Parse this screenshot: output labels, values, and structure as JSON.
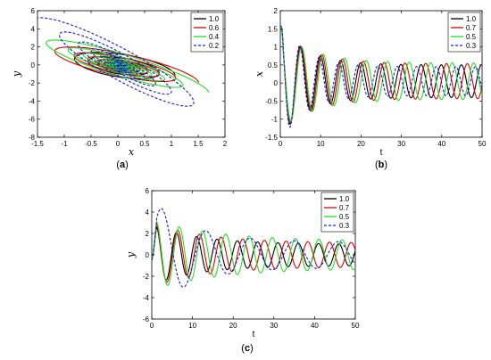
{
  "colors": {
    "black": "#000000",
    "red": "#e00000",
    "green": "#22e022",
    "blue": "#1a1ae6"
  },
  "chart_data": [
    {
      "type": "line",
      "panel": "a",
      "caption_letter": "a",
      "xlabel": "x",
      "ylabel": "y",
      "xlim": [
        -1.5,
        2
      ],
      "ylim": [
        -8,
        6
      ],
      "xticks": [
        -1.5,
        -1,
        -0.5,
        0,
        0.5,
        1,
        1.5,
        2
      ],
      "xtick_labels": [
        "-1.5",
        "-1",
        "-0.5",
        "0",
        "0.5",
        "1",
        "1.5",
        "2"
      ],
      "yticks": [
        -8,
        -6,
        -4,
        -2,
        0,
        2,
        4,
        6
      ],
      "ytick_labels": [
        "-8",
        "-6",
        "-4",
        "-2",
        "0",
        "2",
        "4",
        "6"
      ],
      "legend_position": "top-right",
      "series": [
        {
          "name": "1.0",
          "color": "black",
          "dash": false,
          "x": [
            1.05,
            0.6,
            -1.05,
            0.2,
            0.45,
            -0.35,
            0.05
          ],
          "y": [
            -1.2,
            -2.8,
            1.4,
            2.3,
            -1.1,
            0.6,
            -0.2
          ]
        },
        {
          "name": "0.6",
          "color": "red",
          "dash": false,
          "x": [
            1.3,
            0.9,
            -0.8,
            -0.85,
            0.5,
            0.4,
            -0.3,
            0.05
          ],
          "y": [
            -2.0,
            -2.7,
            3.0,
            2.0,
            -1.6,
            -0.9,
            0.5,
            -0.1
          ]
        },
        {
          "name": "0.4",
          "color": "green",
          "dash": false,
          "x": [
            1.3,
            0.5,
            -0.6,
            -0.25,
            0.4,
            -0.2,
            0.05
          ],
          "y": [
            -3.1,
            -4.4,
            3.5,
            1.6,
            -1.4,
            0.4,
            -0.1
          ]
        },
        {
          "name": "0.2",
          "color": "blue",
          "dash": true,
          "x": [
            -1.1,
            1.9,
            1.6,
            -0.35,
            0.3,
            -0.2,
            0.05
          ],
          "y": [
            4.8,
            -4.4,
            -6.3,
            2.1,
            -0.9,
            0.5,
            -0.1
          ]
        }
      ]
    },
    {
      "type": "line",
      "panel": "b",
      "caption_letter": "b",
      "xlabel": "t",
      "ylabel": "x",
      "xlim": [
        0,
        50
      ],
      "ylim": [
        -1.5,
        2
      ],
      "xticks": [
        0,
        10,
        20,
        30,
        40,
        50
      ],
      "xtick_labels": [
        "0",
        "10",
        "20",
        "30",
        "40",
        "50"
      ],
      "yticks": [
        -1.5,
        -1,
        -0.5,
        0,
        0.5,
        1,
        1.5,
        2
      ],
      "ytick_labels": [
        "-1.5",
        "-1",
        "-0.5",
        "0",
        "0.5",
        "1",
        "1.5",
        "2"
      ],
      "legend_position": "top-right",
      "series": [
        {
          "name": "1.0",
          "color": "black",
          "dash": false,
          "x0": 1.5,
          "amp0": 1.5,
          "tau": 7,
          "amp_inf": 0.45,
          "omega": 1.26,
          "offset": 0.05
        },
        {
          "name": "0.7",
          "color": "red",
          "dash": false,
          "x0": 1.5,
          "amp0": 1.4,
          "tau": 8,
          "amp_inf": 0.48,
          "omega": 1.22,
          "offset": 0.05
        },
        {
          "name": "0.5",
          "color": "green",
          "dash": false,
          "x0": 1.5,
          "amp0": 1.3,
          "tau": 9,
          "amp_inf": 0.5,
          "omega": 1.18,
          "offset": 0.05
        },
        {
          "name": "0.3",
          "color": "blue",
          "dash": true,
          "x0": 1.5,
          "amp0": 1.7,
          "tau": 6,
          "amp_inf": 0.4,
          "omega": 1.3,
          "offset": 0.05
        }
      ]
    },
    {
      "type": "line",
      "panel": "c",
      "caption_letter": "c",
      "xlabel": "t",
      "ylabel": "y",
      "xlim": [
        0,
        50
      ],
      "ylim": [
        -6,
        6
      ],
      "xticks": [
        0,
        10,
        20,
        30,
        40,
        50
      ],
      "xtick_labels": [
        "0",
        "10",
        "20",
        "30",
        "40",
        "50"
      ],
      "yticks": [
        -6,
        -4,
        -2,
        0,
        2,
        4,
        6
      ],
      "ytick_labels": [
        "-6",
        "-4",
        "-2",
        "0",
        "2",
        "4",
        "6"
      ],
      "legend_position": "top-right",
      "series": [
        {
          "name": "1.0",
          "color": "black",
          "dash": false,
          "amp0": 2.8,
          "tau": 12,
          "amp_inf": 1.0,
          "omega": 1.26,
          "phase": 0.2
        },
        {
          "name": "0.7",
          "color": "red",
          "dash": false,
          "amp0": 3.0,
          "tau": 14,
          "amp_inf": 1.1,
          "omega": 1.18,
          "phase": 0.3
        },
        {
          "name": "0.5",
          "color": "green",
          "dash": false,
          "amp0": 3.3,
          "tau": 16,
          "amp_inf": 1.3,
          "omega": 1.1,
          "phase": 0.4
        },
        {
          "name": "0.3",
          "color": "blue",
          "dash": true,
          "amp0": 5.2,
          "tau": 10,
          "amp_inf": 1.2,
          "omega": 0.58,
          "phase": 0.1
        }
      ]
    }
  ]
}
